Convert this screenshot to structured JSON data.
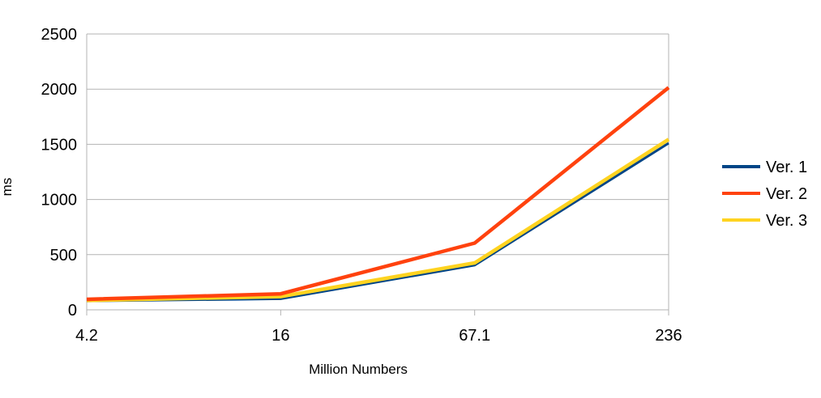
{
  "chart_data": {
    "type": "line",
    "title": "",
    "xlabel": "Million Numbers",
    "ylabel": "ms",
    "categories": [
      "4.2",
      "16",
      "67.1",
      "236"
    ],
    "ylim": [
      0,
      2500
    ],
    "yticks": [
      "0",
      "500",
      "1000",
      "1500",
      "2000",
      "2500"
    ],
    "grid": "horizontal",
    "legend_position": "right",
    "series": [
      {
        "name": "Ver. 1",
        "color": "#004586",
        "values": [
          80,
          100,
          405,
          1510
        ]
      },
      {
        "name": "Ver. 2",
        "color": "#ff420e",
        "values": [
          95,
          145,
          605,
          2015
        ]
      },
      {
        "name": "Ver. 3",
        "color": "#ffd320",
        "values": [
          85,
          120,
          425,
          1545
        ]
      }
    ]
  }
}
